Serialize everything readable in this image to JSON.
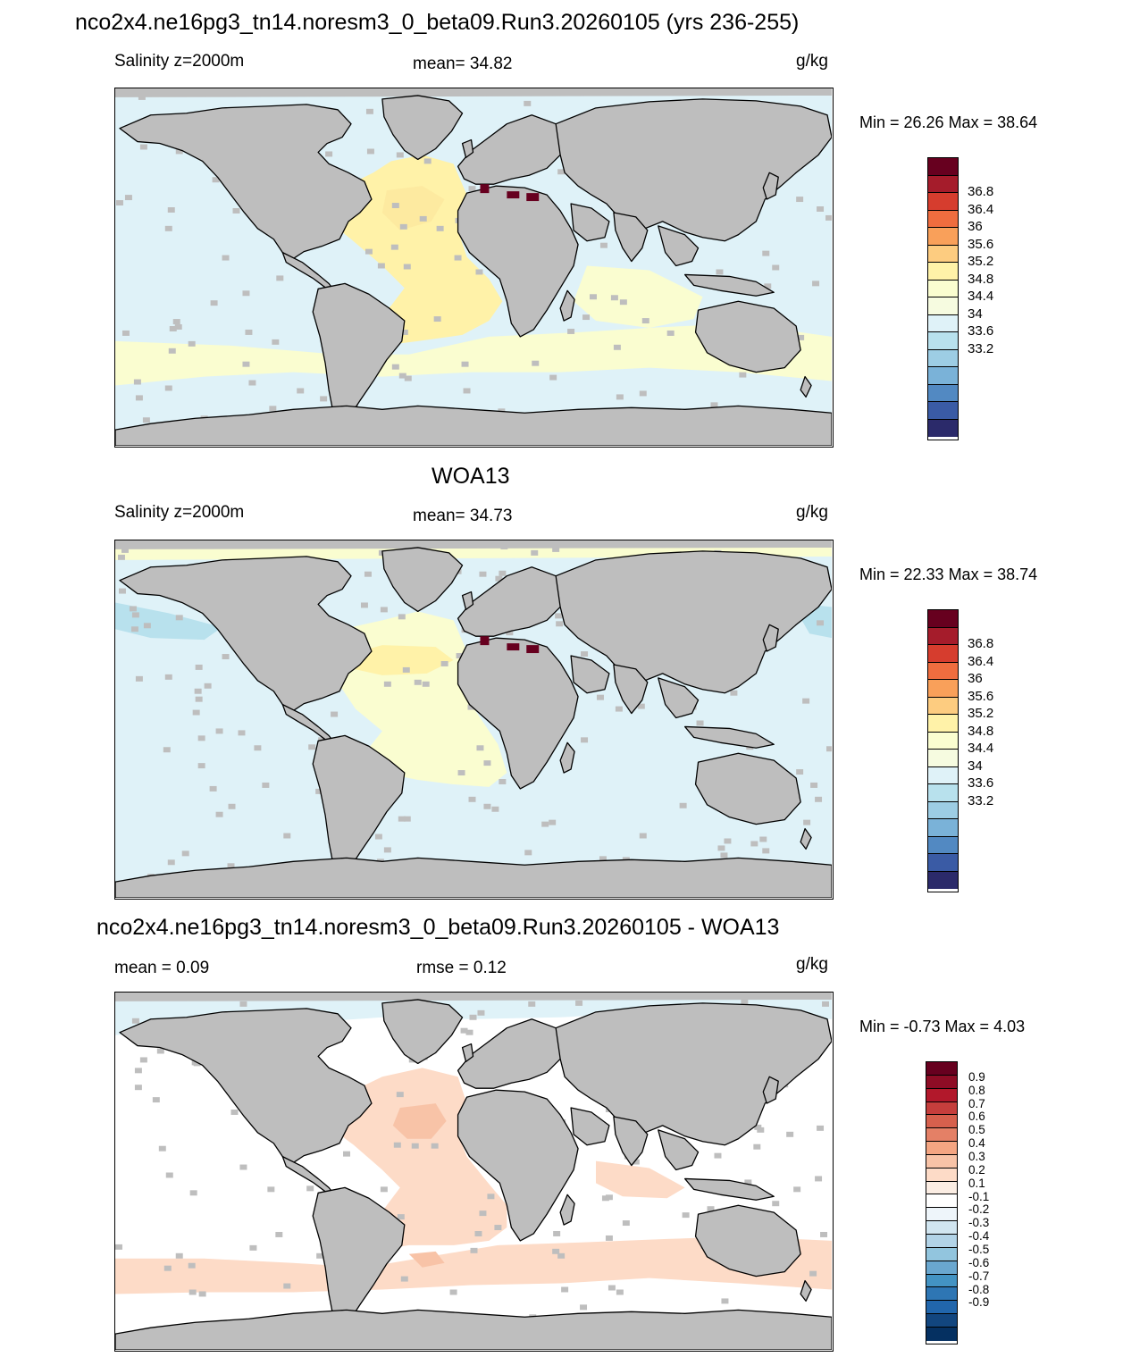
{
  "panels": [
    {
      "id": "model",
      "title": "nco2x4.ne16pg3_tn14.noresm3_0_beta09.Run3.20260105 (yrs 236-255)",
      "left_label": "Salinity z=2000m",
      "center_label": "mean=  34.82",
      "units": "g/kg",
      "minmax": "Min =  26.26 Max =  38.64",
      "colorbar_labels": [
        "36.8",
        "36.4",
        "36",
        "35.6",
        "35.2",
        "34.8",
        "34.4",
        "34",
        "33.6",
        "33.2"
      ],
      "colorbar_colors": [
        "#67001f",
        "#a51c2b",
        "#d63d2e",
        "#ef6d3f",
        "#f9a05a",
        "#fdcc80",
        "#fff2a8",
        "#fafdd0",
        "#f6fbe0",
        "#dff2f8",
        "#b8e1ed",
        "#9dcde4",
        "#7ab2d8",
        "#5289c2",
        "#3a5ba5",
        "#2b2a6a"
      ],
      "background": "#dff2f8",
      "has_ocean_wash": true
    },
    {
      "id": "obs",
      "title": "WOA13",
      "left_label": "Salinity z=2000m",
      "center_label": "mean=  34.73",
      "units": "g/kg",
      "minmax": "Min =  22.33 Max =  38.74",
      "colorbar_labels": [
        "36.8",
        "36.4",
        "36",
        "35.6",
        "35.2",
        "34.8",
        "34.4",
        "34",
        "33.6",
        "33.2"
      ],
      "colorbar_colors": [
        "#67001f",
        "#a51c2b",
        "#d63d2e",
        "#ef6d3f",
        "#f9a05a",
        "#fdcc80",
        "#fff2a8",
        "#fafdd0",
        "#f6fbe0",
        "#dff2f8",
        "#b8e1ed",
        "#9dcde4",
        "#7ab2d8",
        "#5289c2",
        "#3a5ba5",
        "#2b2a6a"
      ],
      "background": "#dff2f8",
      "has_ocean_wash": false
    },
    {
      "id": "diff",
      "title": "nco2x4.ne16pg3_tn14.noresm3_0_beta09.Run3.20260105 - WOA13",
      "left_label": "mean =   0.09",
      "center_label": "rmse =   0.12",
      "units": "g/kg",
      "minmax": "Min =  -0.73 Max =   4.03",
      "colorbar_labels": [
        "0.9",
        "0.8",
        "0.7",
        "0.6",
        "0.5",
        "0.4",
        "0.3",
        "0.2",
        "0.1",
        "-0.1",
        "-0.2",
        "-0.3",
        "-0.4",
        "-0.5",
        "-0.6",
        "-0.7",
        "-0.8",
        "-0.9"
      ],
      "colorbar_colors": [
        "#67001f",
        "#8e0c25",
        "#b2182b",
        "#c53e3c",
        "#d6604d",
        "#e48066",
        "#f4a582",
        "#f8c3a7",
        "#fddbc7",
        "#fbede3",
        "#ffffff",
        "#eef5fa",
        "#d1e5f0",
        "#b2d3e7",
        "#92c5de",
        "#6aa7cf",
        "#4393c3",
        "#2e76b4",
        "#2166ac",
        "#12467f",
        "#053061"
      ],
      "background": "#ffffff",
      "has_ocean_wash": false
    }
  ]
}
